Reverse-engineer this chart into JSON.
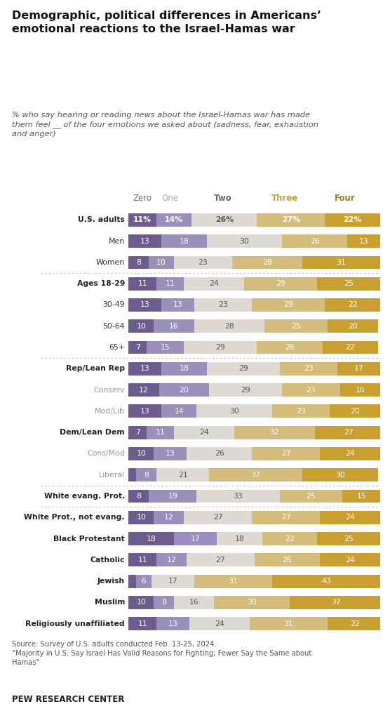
{
  "title": "Demographic, political differences in Americans’\nemotional reactions to the Israel-Hamas war",
  "subtitle": "% who say hearing or reading news about the Israel-Hamas war has made\nthem feel __ of the four emotions we asked about (sadness, fear, exhaustion\nand anger)",
  "source": "Source: Survey of U.S. adults conducted Feb. 13-25, 2024.\n“Majority in U.S. Say Israel Has Valid Reasons for Fighting; Fewer Say the Same about\nHamas”",
  "footer": "PEW RESEARCH CENTER",
  "col_labels": [
    "Zero",
    "One",
    "Two",
    "Three",
    "Four"
  ],
  "col_label_colors": [
    "#6b6b6b",
    "#aaaaaa",
    "#6b6b6b",
    "#c9a030",
    "#a07c20"
  ],
  "col_label_weights": [
    "normal",
    "normal",
    "bold",
    "bold",
    "bold"
  ],
  "colors": [
    "#6b5b8e",
    "#9b8fbb",
    "#dedad3",
    "#d4bc7a",
    "#c9a030"
  ],
  "categories": [
    "U.S. adults",
    "Men",
    "Women",
    "Ages 18-29",
    "30-49",
    "50-64",
    "65+",
    "Rep/Lean Rep",
    "Conserv",
    "Mod/Lib",
    "Dem/Lean Dem",
    "Cons/Mod",
    "Liberal",
    "White evang. Prot.",
    "White Prot., not evang.",
    "Black Protestant",
    "Catholic",
    "Jewish",
    "Muslim",
    "Religiously unaffiliated"
  ],
  "bold_categories": [
    "U.S. adults",
    "Ages 18-29",
    "Rep/Lean Rep",
    "Dem/Lean Dem",
    "White evang. Prot.",
    "White Prot., not evang.",
    "Black Protestant",
    "Catholic",
    "Jewish",
    "Muslim",
    "Religiously unaffiliated"
  ],
  "muted_categories": [
    "Conserv",
    "Mod/Lib",
    "Cons/Mod",
    "Liberal"
  ],
  "values": [
    [
      11,
      14,
      26,
      27,
      22
    ],
    [
      13,
      18,
      30,
      26,
      13
    ],
    [
      8,
      10,
      23,
      28,
      31
    ],
    [
      11,
      11,
      24,
      29,
      25
    ],
    [
      13,
      13,
      23,
      29,
      22
    ],
    [
      10,
      16,
      28,
      25,
      20
    ],
    [
      7,
      15,
      29,
      26,
      22
    ],
    [
      13,
      18,
      29,
      23,
      17
    ],
    [
      12,
      20,
      29,
      23,
      16
    ],
    [
      13,
      14,
      30,
      23,
      20
    ],
    [
      7,
      11,
      24,
      32,
      27
    ],
    [
      10,
      13,
      26,
      27,
      24
    ],
    [
      3,
      8,
      21,
      37,
      30
    ],
    [
      8,
      19,
      33,
      25,
      15
    ],
    [
      10,
      12,
      27,
      27,
      24
    ],
    [
      18,
      17,
      18,
      22,
      25
    ],
    [
      11,
      12,
      27,
      26,
      24
    ],
    [
      3,
      6,
      17,
      31,
      43
    ],
    [
      10,
      8,
      16,
      30,
      37
    ],
    [
      11,
      13,
      24,
      31,
      22
    ]
  ],
  "separator_after_indices": [
    2,
    6,
    12,
    13
  ],
  "us_adults_row": 0,
  "background_color": "#ffffff",
  "bar_height": 0.62
}
